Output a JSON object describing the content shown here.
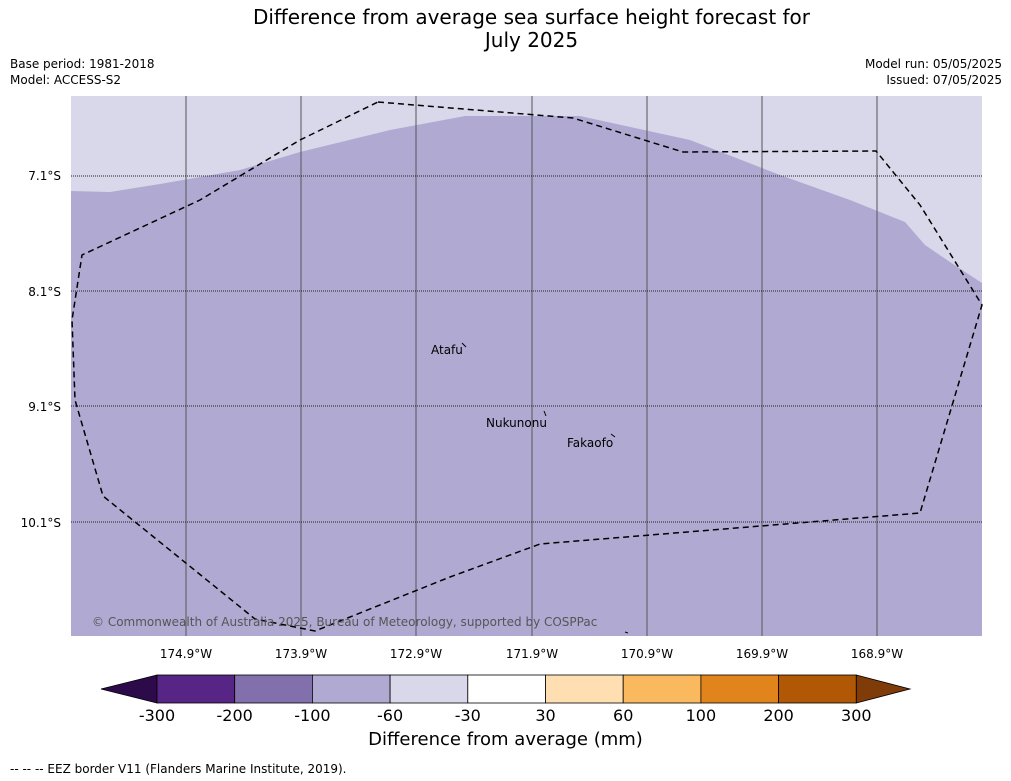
{
  "header": {
    "title": "Difference from average sea surface height forecast for\nJuly 2025",
    "base_period": "Base period: 1981-2018",
    "model": "Model: ACCESS-S2",
    "model_run": "Model run: 05/05/2025",
    "issued": "Issued: 07/05/2025"
  },
  "map": {
    "lat_labels": [
      "7.1°S",
      "8.1°S",
      "9.1°S",
      "10.1°S"
    ],
    "lon_labels": [
      "174.9°W",
      "173.9°W",
      "172.9°W",
      "171.9°W",
      "170.9°W",
      "169.9°W",
      "168.9°W"
    ],
    "places": [
      "Atafu",
      "Nukunonu",
      "Fakaofo"
    ],
    "copyright": "© Commonwealth of Australia 2025, Bureau of Meteorology, supported by COSPPac",
    "land_color": "#b0aad2",
    "sea_light_color": "#d8d8ea"
  },
  "colorbar": {
    "label": "Difference from average (mm)",
    "ticks": [
      "-300",
      "-200",
      "-100",
      "-60",
      "-30",
      "30",
      "60",
      "100",
      "200",
      "300"
    ],
    "colors": [
      "#2d0a4a",
      "#562585",
      "#8270ad",
      "#b0aad2",
      "#d8d8ea",
      "#ffffff",
      "#ffdfb2",
      "#fbb95f",
      "#e2841c",
      "#b15807",
      "#7f3b08"
    ]
  },
  "footer": {
    "eez_note": "--  --  -- EEZ border V11 (Flanders Marine Institute, 2019)."
  }
}
